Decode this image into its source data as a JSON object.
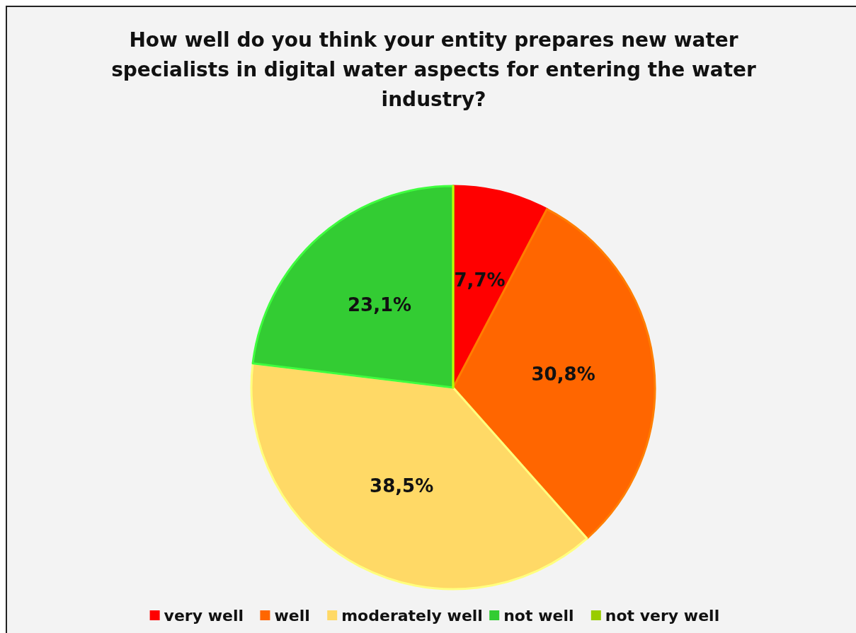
{
  "chart_data": {
    "type": "pie",
    "title": "How well do you think your entity prepares new water specialists in digital water aspects for entering the water industry?",
    "categories": [
      "very well",
      "well",
      "moderately well",
      "not well",
      "not very well"
    ],
    "values": [
      7.7,
      30.8,
      38.5,
      23.1,
      0
    ],
    "colors": [
      "#ff0000",
      "#ff6600",
      "#ffd966",
      "#33cc33",
      "#99cc00"
    ],
    "value_labels": [
      "7,7%",
      "30,8%",
      "38,5%",
      "23,1%",
      null
    ],
    "legend": "bottom"
  }
}
